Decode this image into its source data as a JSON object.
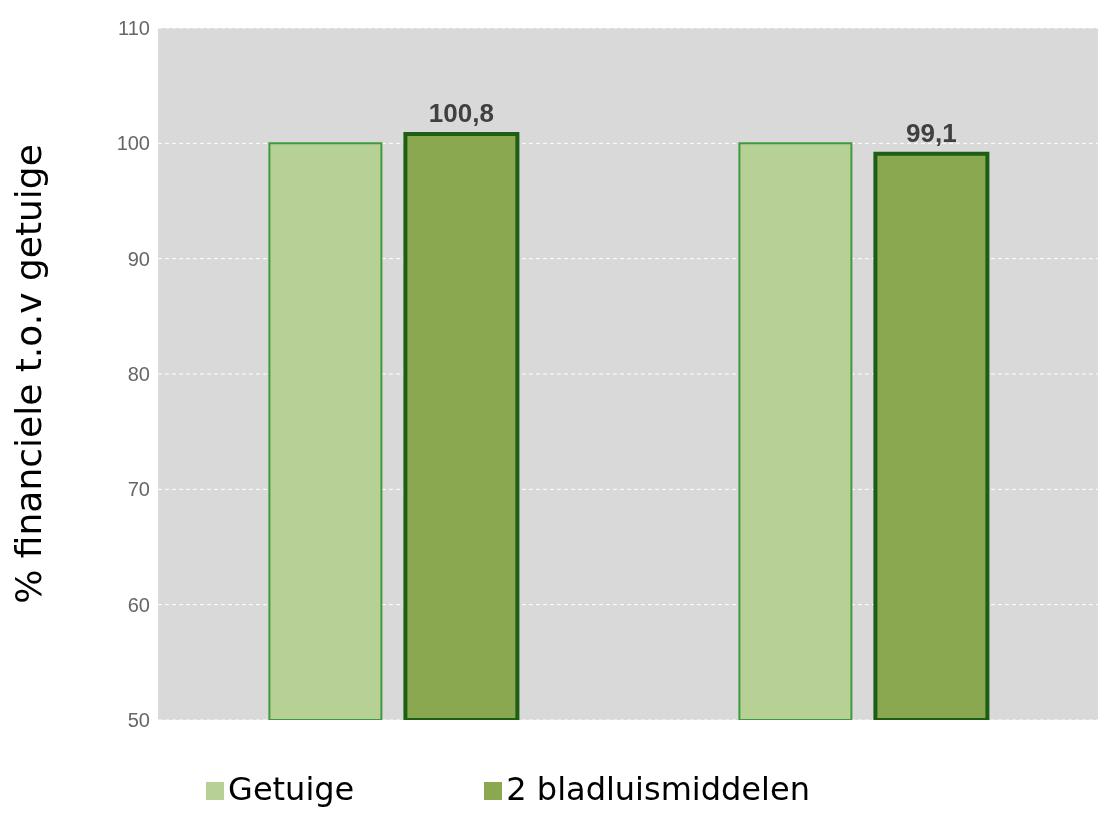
{
  "chart_data": {
    "type": "bar",
    "ylabel": "% financiele t.o.v getuige",
    "categories": [
      null,
      null
    ],
    "series": [
      {
        "name": "Getuige",
        "color": "#b7d096",
        "values": [
          100,
          100
        ]
      },
      {
        "name": "2 bladluismiddelen",
        "color": "#8aa84f",
        "values": [
          100.8,
          99.1
        ],
        "value_labels": [
          "100,8",
          "99,1"
        ]
      }
    ],
    "ylim": [
      50,
      110
    ],
    "yticks": [
      50,
      60,
      70,
      80,
      90,
      100,
      110
    ],
    "grid": "y",
    "legend": "bottom"
  }
}
